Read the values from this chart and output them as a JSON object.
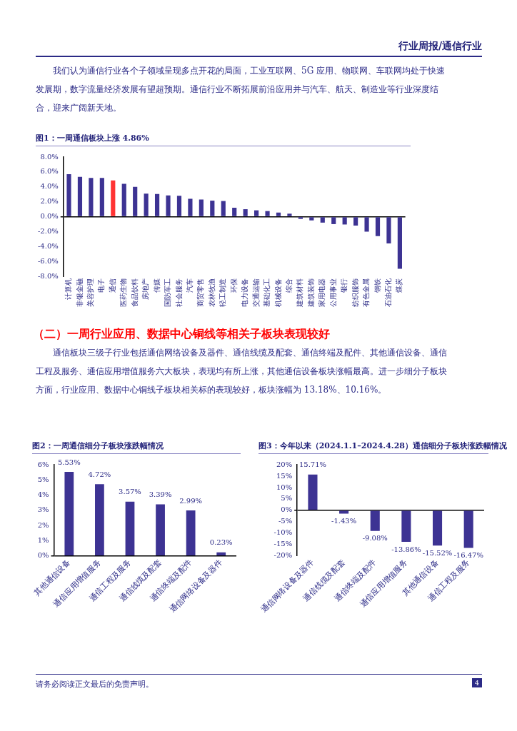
{
  "chart_data": [
    {
      "type": "other",
      "title": "行业周报/通信行业",
      "annotations": [
        "我们认为通信行业各个子领域呈现多点开花的局面，工业互联网、5G 应用、物联网、车联网均处于快速发展期，数字流量经济发展有望超预期。通信行业不断拓展前沿应用并与汽车、航天、制造业等行业深度结合，迎来广阔新天地。"
      ]
    },
    {
      "type": "bar",
      "title": "图1：一周通信板块上涨 4.86%",
      "categories": [
        "计算机",
        "非银金融",
        "美容护理",
        "电子",
        "通信",
        "医药生物",
        "食品饮料",
        "房地产",
        "传媒",
        "国防军工",
        "社会服务",
        "汽车",
        "商贸零售",
        "农林牧渔",
        "轻工制造",
        "环保",
        "电力设备",
        "交通运输",
        "基础化工",
        "机械设备",
        "综合",
        "建筑材料",
        "建筑装饰",
        "家用电器",
        "公用事业",
        "银行",
        "纺织服饰",
        "有色金属",
        "钢铁",
        "石油石化",
        "煤炭"
      ],
      "values": [
        5.7,
        5.35,
        5.2,
        5.2,
        4.86,
        4.4,
        4.0,
        3.1,
        3.05,
        2.85,
        2.8,
        2.4,
        2.3,
        2.15,
        2.1,
        1.2,
        1.0,
        0.85,
        0.75,
        0.55,
        0.4,
        -0.3,
        -0.5,
        -0.8,
        -1.0,
        -1.05,
        -1.2,
        -2.0,
        -2.6,
        -3.6,
        -7.0
      ],
      "colors": [
        "#3d3393",
        "#3d3393",
        "#3d3393",
        "#3d3393",
        "#ff3333",
        "#3d3393",
        "#3d3393",
        "#3d3393",
        "#3d3393",
        "#3d3393",
        "#3d3393",
        "#3d3393",
        "#3d3393",
        "#3d3393",
        "#3d3393",
        "#3d3393",
        "#3d3393",
        "#3d3393",
        "#3d3393",
        "#3d3393",
        "#3d3393",
        "#3d3393",
        "#3d3393",
        "#3d3393",
        "#3d3393",
        "#3d3393",
        "#3d3393",
        "#3d3393",
        "#3d3393",
        "#3d3393",
        "#3d3393"
      ],
      "ylim": [
        -8,
        8
      ],
      "yticks": [
        {
          "value": -8,
          "label": "-8.0%"
        },
        {
          "value": -6,
          "label": "-6.0%"
        },
        {
          "value": -4,
          "label": "-4.0%"
        },
        {
          "value": -2,
          "label": "-2.0%"
        },
        {
          "value": 0,
          "label": "0.0%"
        },
        {
          "value": 2,
          "label": "2.0%"
        },
        {
          "value": 4,
          "label": "4.0%"
        },
        {
          "value": 6,
          "label": "6.0%"
        },
        {
          "value": 8,
          "label": "8.0%"
        }
      ]
    },
    {
      "type": "other",
      "title": "（二）一周行业应用、数据中心铜线等相关子板块表现较好",
      "annotations": [
        "通信板块三级子行业包括通信网络设备及器件、通信线缆及配套、通信终端及配件、其他通信设备、通信工程及服务、通信应用增值服务六大板块，表现均有所上涨，其他通信设备板块涨幅最高。进一步细分子板块方面，行业应用、数据中心铜线子板块相关标的表现较好，板块涨幅为 13.18%、10.16%。"
      ]
    },
    {
      "type": "bar",
      "title": "图2：一周通信细分子板块涨跌幅情况",
      "categories": [
        "其他通信设备",
        "通信应用增值服务",
        "通信工程及服务",
        "通信线缆及配套",
        "通信终端及配件",
        "通信网络设备及器件"
      ],
      "values": [
        5.53,
        4.72,
        3.57,
        3.39,
        2.99,
        0.23
      ],
      "color": "#3d3393",
      "value_labels": [
        "5.53%",
        "4.72%",
        "3.57%",
        "3.39%",
        "2.99%",
        "0.23%"
      ],
      "ylim": [
        0,
        6
      ],
      "yticks": [
        {
          "value": 0,
          "label": "0%"
        },
        {
          "value": 1,
          "label": "1%"
        },
        {
          "value": 2,
          "label": "2%"
        },
        {
          "value": 3,
          "label": "3%"
        },
        {
          "value": 4,
          "label": "4%"
        },
        {
          "value": 5,
          "label": "5%"
        },
        {
          "value": 6,
          "label": "6%"
        }
      ]
    },
    {
      "type": "bar",
      "title": "图3：今年以来（2024.1.1–2024.4.28）通信细分子板块涨跌幅情况",
      "categories": [
        "通信网络设备及器件",
        "通信线缆及配套",
        "通信终端及配件",
        "通信应用增值服务",
        "其他通信设备",
        "通信工程及服务"
      ],
      "values": [
        15.71,
        -1.43,
        -9.08,
        -13.86,
        -15.52,
        -16.47
      ],
      "color": "#3d3393",
      "value_labels": [
        "15.71%",
        "-1.43%",
        "-9.08%",
        "-13.86%",
        "-15.52%",
        "-16.47%"
      ],
      "ylim": [
        -20,
        20
      ],
      "yticks": [
        {
          "value": -20,
          "label": "-20%"
        },
        {
          "value": -15,
          "label": "-15%"
        },
        {
          "value": -10,
          "label": "-10%"
        },
        {
          "value": -5,
          "label": "-5%"
        },
        {
          "value": 0,
          "label": "0%"
        },
        {
          "value": 5,
          "label": "5%"
        },
        {
          "value": 10,
          "label": "10%"
        },
        {
          "value": 15,
          "label": "15%"
        },
        {
          "value": 20,
          "label": "20%"
        }
      ]
    },
    {
      "type": "other",
      "annotations": [
        "请务必阅读正文最后的免责声明。",
        "4"
      ]
    }
  ]
}
